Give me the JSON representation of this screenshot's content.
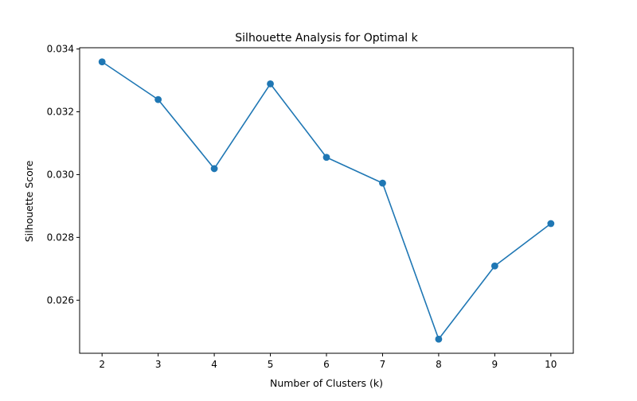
{
  "chart_data": {
    "type": "line",
    "title": "Silhouette Analysis for Optimal k",
    "xlabel": "Number of Clusters (k)",
    "ylabel": "Silhouette Score",
    "x": [
      2,
      3,
      4,
      5,
      6,
      7,
      8,
      9,
      10
    ],
    "series": [
      {
        "values": [
          0.03359,
          0.03239,
          0.03019,
          0.03289,
          0.03055,
          0.02973,
          0.02476,
          0.02709,
          0.02844
        ],
        "color": "#1f77b4",
        "marker": "circle"
      }
    ],
    "xlim": [
      1.6,
      10.4
    ],
    "ylim": [
      0.02431,
      0.03404
    ],
    "xticks": [
      2,
      3,
      4,
      5,
      6,
      7,
      8,
      9,
      10
    ],
    "xtick_labels": [
      "2",
      "3",
      "4",
      "5",
      "6",
      "7",
      "8",
      "9",
      "10"
    ],
    "yticks": [
      0.026,
      0.028,
      0.03,
      0.032,
      0.034
    ],
    "ytick_labels": [
      "0.026",
      "0.028",
      "0.030",
      "0.032",
      "0.034"
    ],
    "grid": false,
    "legend": false
  }
}
